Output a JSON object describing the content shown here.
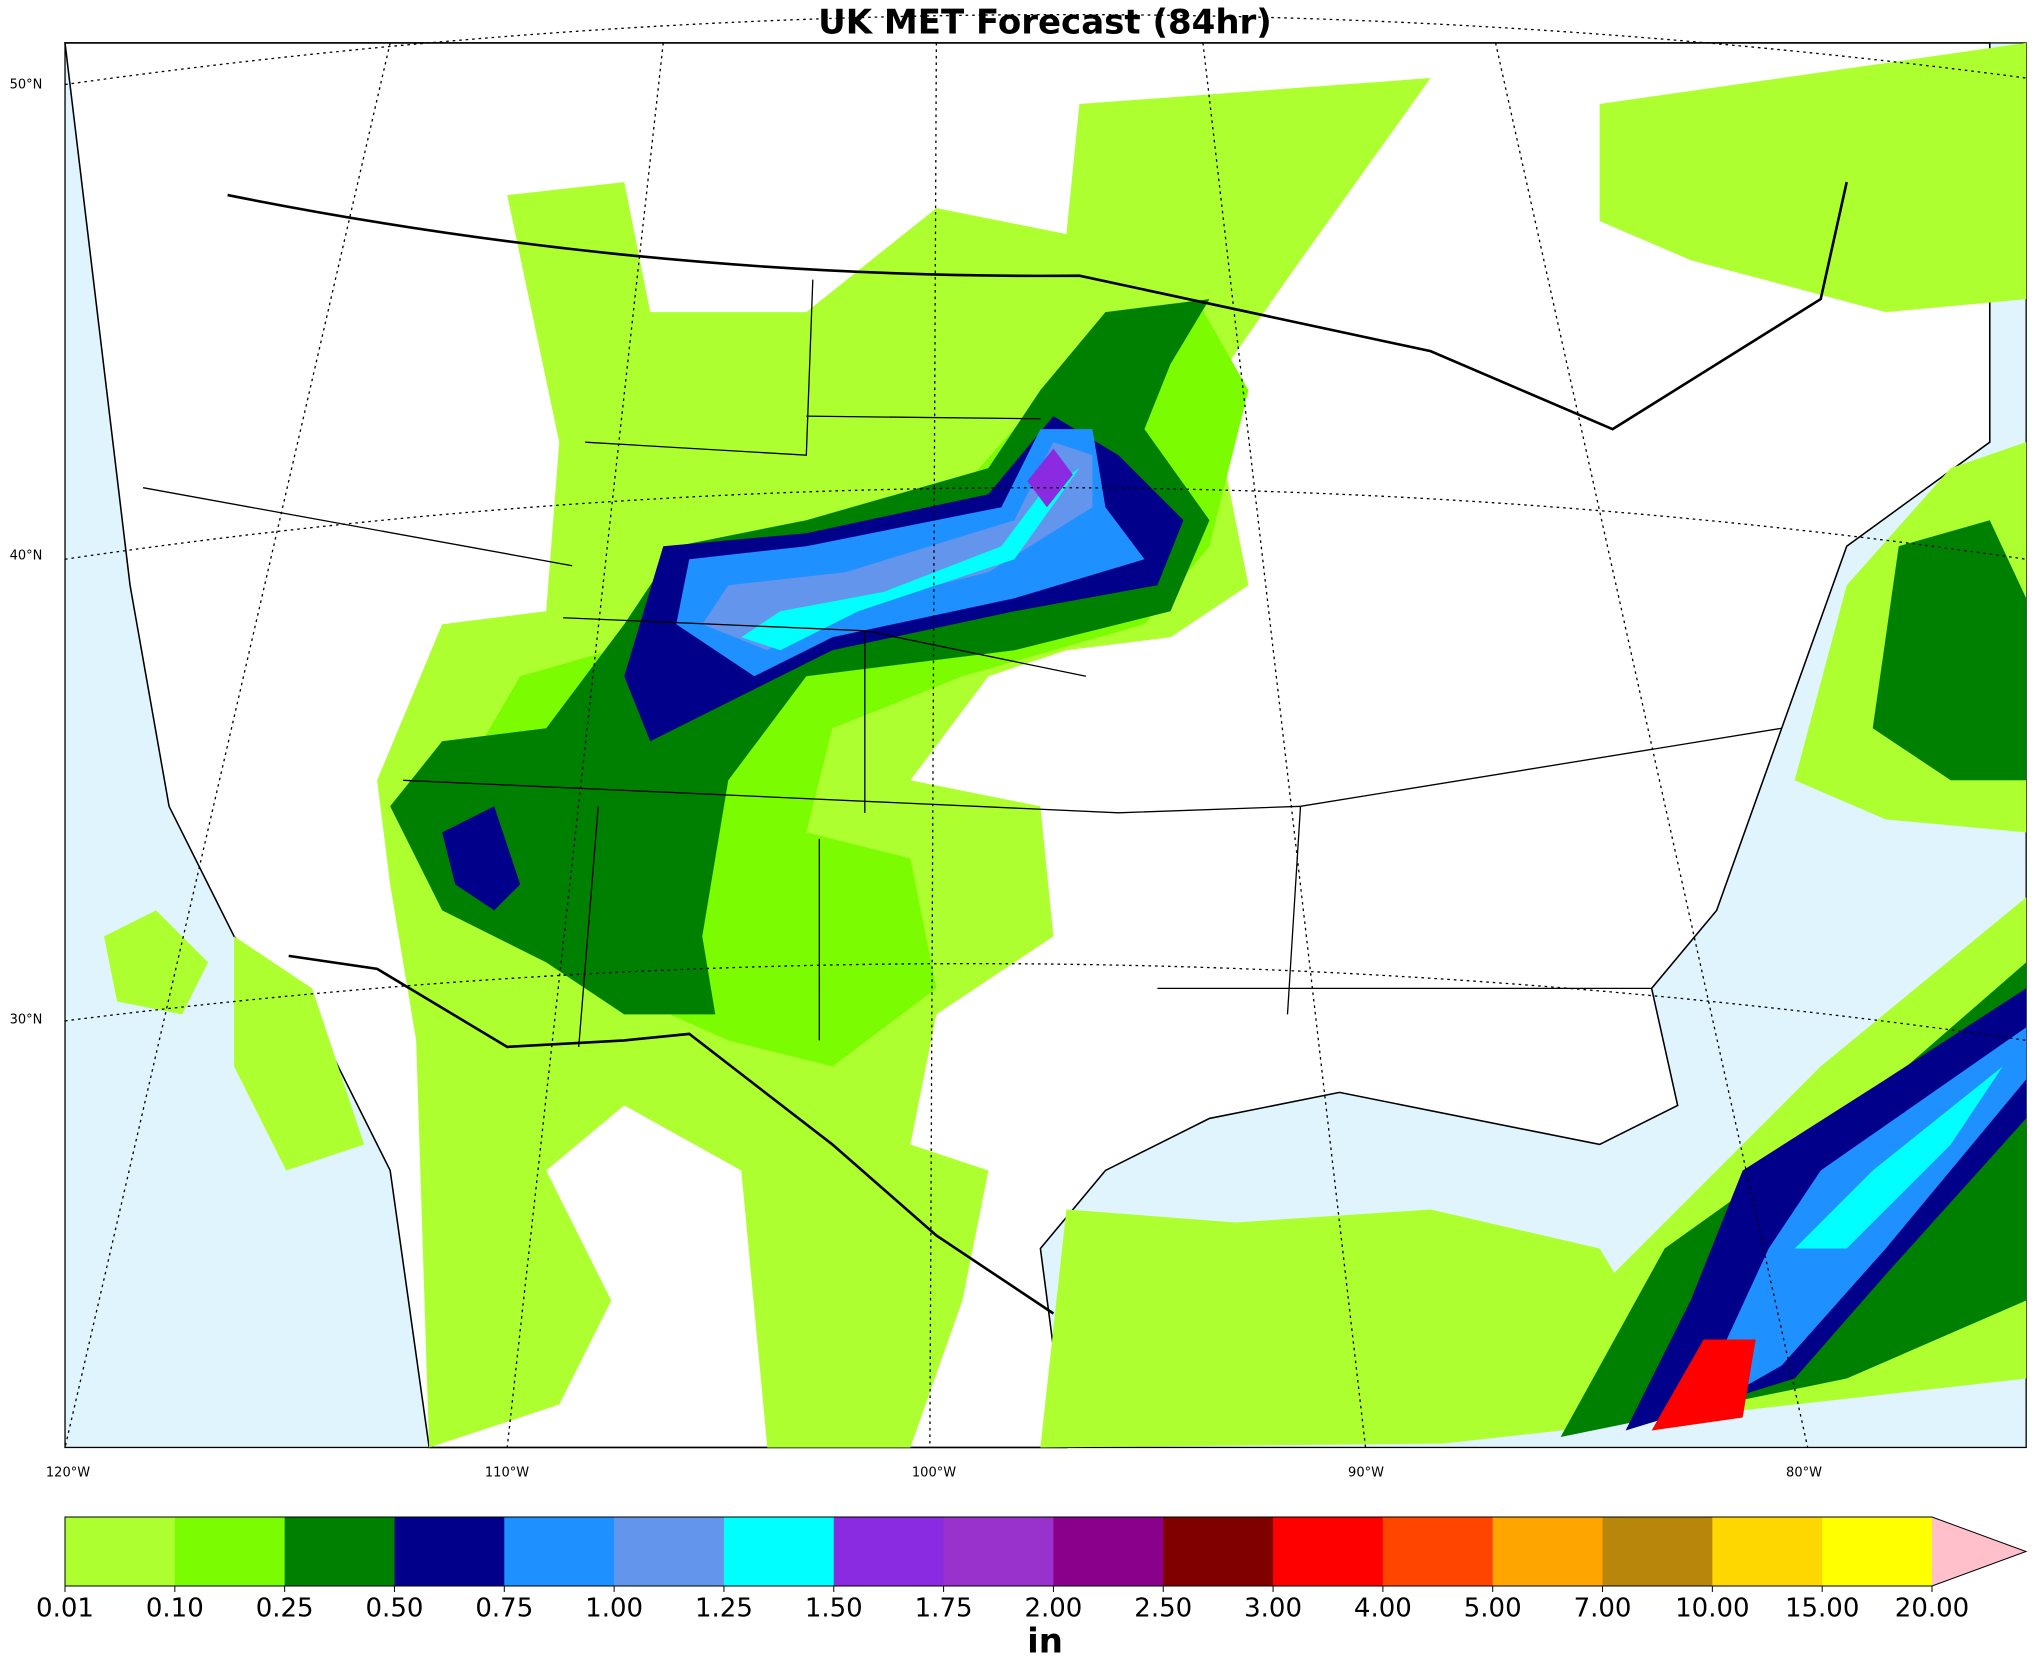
{
  "title": "UK MET Forecast (84hr)",
  "latitude_labels": [
    "50°N",
    "40°N",
    "30°N"
  ],
  "longitude_labels": [
    "120°W",
    "110°W",
    "100°W",
    "90°W",
    "80°W"
  ],
  "colorbar": {
    "levels": [
      "0.01",
      "0.10",
      "0.25",
      "0.50",
      "0.75",
      "1.00",
      "1.25",
      "1.50",
      "1.75",
      "2.00",
      "2.50",
      "3.00",
      "4.00",
      "5.00",
      "7.00",
      "10.00",
      "15.00",
      "20.00"
    ],
    "colors": [
      "#adff2f",
      "#7cfc00",
      "#008000",
      "#00008b",
      "#1e90ff",
      "#6495ed",
      "#00ffff",
      "#8a2be2",
      "#9932cc",
      "#8b008b",
      "#800000",
      "#ff0000",
      "#ff4500",
      "#ffa500",
      "#b8860b",
      "#ffd700",
      "#ffff00"
    ],
    "extend_color": "#ffc0cb",
    "unit": "in"
  }
}
